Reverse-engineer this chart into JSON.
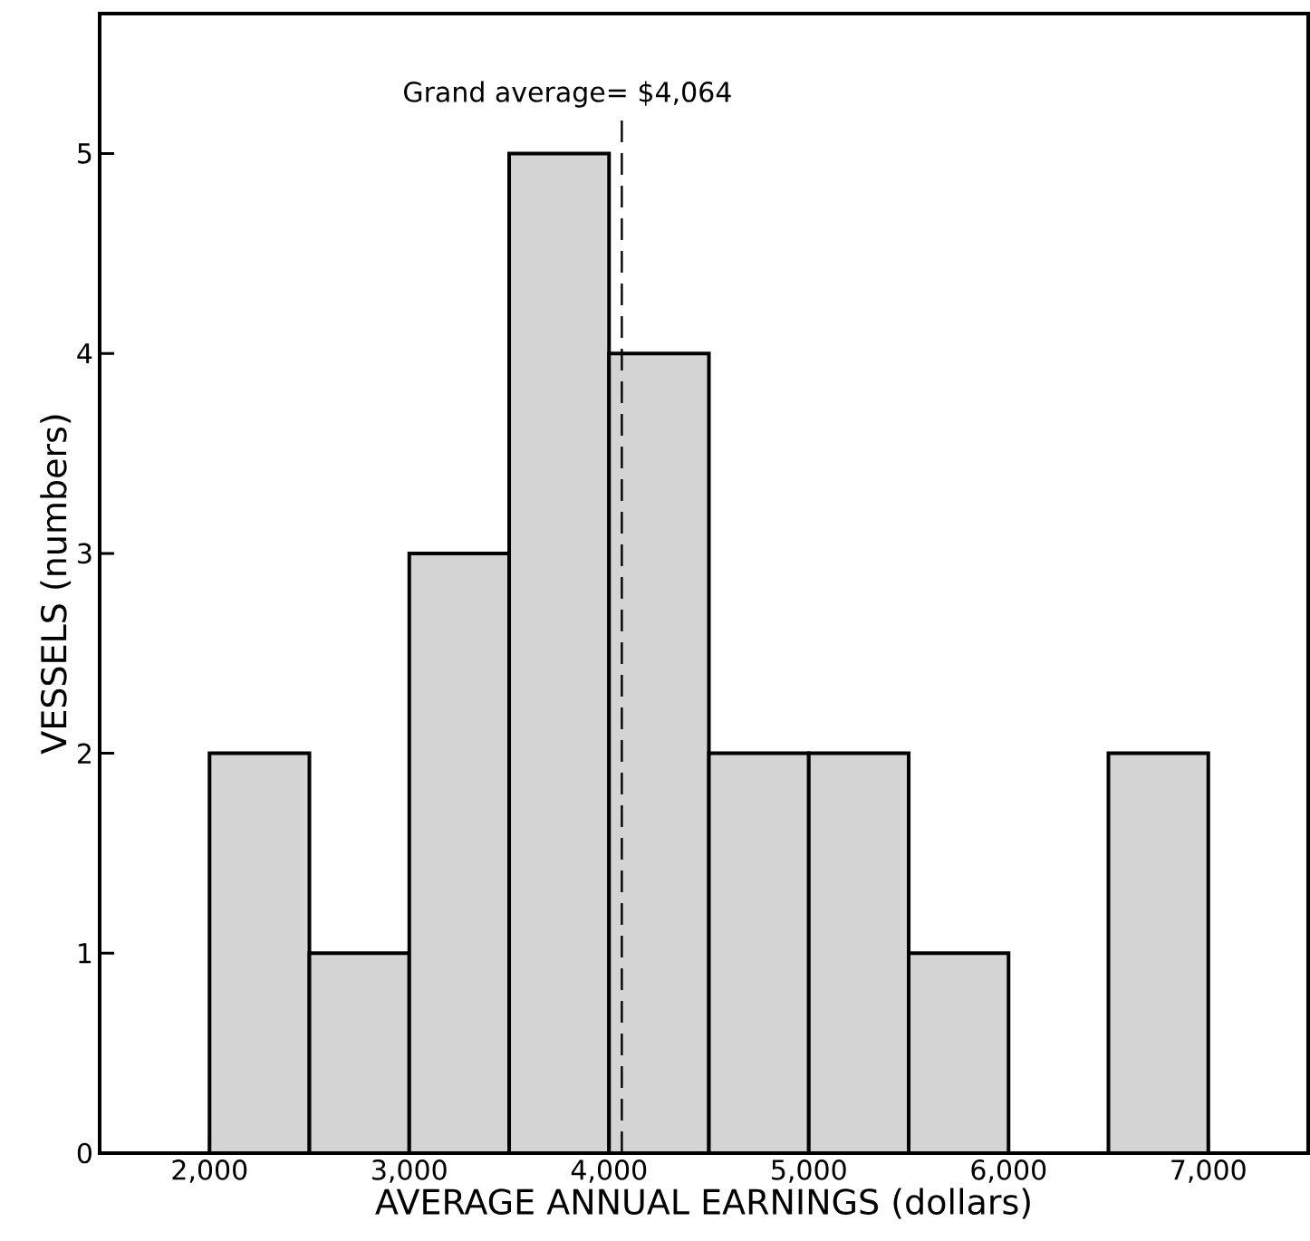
{
  "chart_data": {
    "type": "histogram",
    "xlabel": "AVERAGE ANNUAL EARNINGS (dollars)",
    "ylabel": "VESSELS (numbers)",
    "bins": [
      2000,
      2500,
      3000,
      3500,
      4000,
      4500,
      5000,
      5500,
      6000,
      6500,
      7000
    ],
    "values": [
      2,
      1,
      3,
      5,
      4,
      2,
      2,
      1,
      0,
      2
    ],
    "color": "#d4d4d4",
    "xlim": [
      1450,
      7500
    ],
    "ylim": [
      0,
      5.7
    ],
    "xticks": [
      {
        "value": 2000,
        "label": "2,000"
      },
      {
        "value": 3000,
        "label": "3,000"
      },
      {
        "value": 4000,
        "label": "4,000"
      },
      {
        "value": 5000,
        "label": "5,000"
      },
      {
        "value": 6000,
        "label": "6,000"
      },
      {
        "value": 7000,
        "label": "7,000"
      }
    ],
    "yticks": [
      0,
      1,
      2,
      3,
      4,
      5
    ],
    "ref_lines": [
      {
        "axis": "x",
        "value": 4064,
        "label": "Grand average= $4,064",
        "line_style": "dashed"
      }
    ]
  }
}
